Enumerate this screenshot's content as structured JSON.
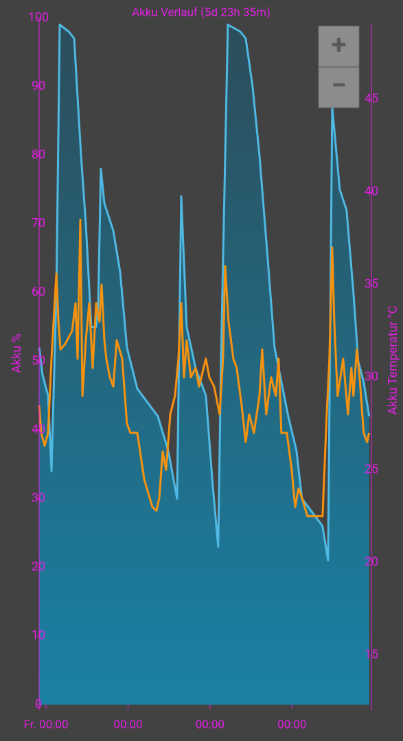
{
  "chart_data": {
    "type": "line",
    "title": "Akku Verlauf (5d 23h 35m)",
    "ylabel": "Akku %",
    "y2label": "Akku Temperatur °C",
    "xlim": [
      -0.084,
      3.96
    ],
    "xticks": [
      {
        "value": 0,
        "label": "Fr. 00:00"
      },
      {
        "value": 1,
        "label": "00:00"
      },
      {
        "value": 2,
        "label": "00:00"
      },
      {
        "value": 3,
        "label": "00:00"
      }
    ],
    "ylim": [
      0,
      100
    ],
    "yticks": [
      0,
      10,
      20,
      30,
      40,
      50,
      60,
      70,
      80,
      90,
      100
    ],
    "y2lim": [
      12.33,
      49.4
    ],
    "y2ticks": [
      15,
      20,
      25,
      30,
      35,
      40,
      45
    ],
    "axis_color": "#e020e0",
    "series": [
      {
        "color": "#4fb9e3",
        "fill": true,
        "x": [
          -0.084,
          -0.042,
          0.025,
          0.067,
          0.092,
          0.126,
          0.167,
          0.276,
          0.343,
          0.377,
          0.427,
          0.485,
          0.552,
          0.611,
          0.636,
          0.669,
          0.711,
          0.82,
          0.904,
          0.987,
          1.113,
          1.238,
          1.364,
          1.49,
          1.598,
          1.649,
          1.715,
          1.824,
          1.95,
          2.033,
          2.1,
          2.134,
          2.218,
          2.368,
          2.435,
          2.519,
          2.603,
          2.703,
          2.787,
          2.854,
          2.954,
          3.054,
          3.121,
          3.247,
          3.372,
          3.439,
          3.49,
          3.582,
          3.665,
          3.749,
          3.808,
          3.874,
          3.941
        ],
        "values": [
          52,
          48,
          45,
          34,
          45,
          60,
          99,
          98,
          97,
          90,
          80,
          70,
          55,
          55,
          58,
          78,
          73,
          69,
          63,
          52,
          46,
          44,
          42,
          37,
          30,
          74,
          55,
          49,
          45,
          32,
          23,
          50,
          99,
          98,
          97,
          90,
          80,
          65,
          52,
          48,
          42,
          37,
          30,
          28,
          26,
          21,
          87,
          75,
          72,
          60,
          50,
          47,
          42
        ]
      },
      {
        "color": "#f7920f",
        "axis": "y2",
        "x": [
          -0.084,
          -0.059,
          -0.017,
          0.025,
          0.067,
          0.092,
          0.126,
          0.151,
          0.176,
          0.234,
          0.318,
          0.36,
          0.385,
          0.418,
          0.444,
          0.485,
          0.527,
          0.569,
          0.611,
          0.653,
          0.678,
          0.711,
          0.736,
          0.778,
          0.82,
          0.862,
          0.929,
          0.962,
          0.987,
          1.029,
          1.113,
          1.197,
          1.297,
          1.347,
          1.381,
          1.423,
          1.464,
          1.515,
          1.573,
          1.615,
          1.649,
          1.682,
          1.715,
          1.766,
          1.824,
          1.866,
          1.95,
          1.992,
          2.05,
          2.117,
          2.159,
          2.184,
          2.226,
          2.285,
          2.326,
          2.385,
          2.435,
          2.477,
          2.536,
          2.603,
          2.636,
          2.686,
          2.745,
          2.803,
          2.837,
          2.87,
          2.937,
          2.996,
          3.038,
          3.079,
          3.121,
          3.188,
          3.272,
          3.372,
          3.423,
          3.456,
          3.49,
          3.515,
          3.556,
          3.623,
          3.682,
          3.724,
          3.749,
          3.791,
          3.824,
          3.874,
          3.916,
          3.941
        ],
        "values": [
          28.5,
          27,
          26.3,
          27,
          31,
          33,
          35.6,
          33,
          31.5,
          31.8,
          32.5,
          34,
          31,
          38.5,
          29,
          32,
          34,
          30.5,
          34,
          33,
          35,
          32,
          31,
          30,
          29.5,
          32,
          31,
          29,
          27.5,
          27,
          27,
          24.5,
          23,
          22.8,
          23.5,
          26,
          25,
          28,
          29,
          31,
          34,
          30,
          32,
          30,
          30.5,
          29.5,
          31,
          30,
          29.5,
          28,
          31,
          36,
          33,
          31,
          30.5,
          28.5,
          26.5,
          28,
          27,
          29,
          31.5,
          28,
          30,
          29,
          31,
          27,
          27,
          25,
          23,
          24,
          23.5,
          22.5,
          22.5,
          22.5,
          28,
          31,
          37,
          33,
          29,
          31,
          28,
          30.5,
          29,
          31.5,
          30,
          27,
          26.5,
          27
        ]
      }
    ]
  },
  "controls": {
    "zoom_in": "+",
    "zoom_out": "−"
  }
}
